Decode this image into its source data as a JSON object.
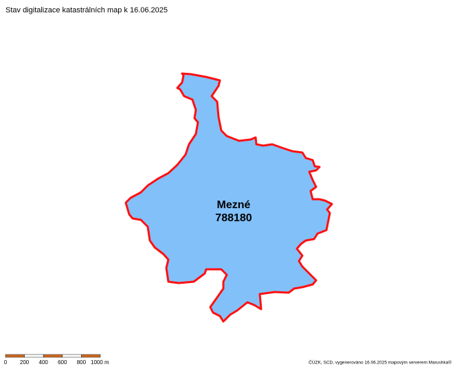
{
  "title": "Stav digitalizace katastrálních map k 16.06.2025",
  "map": {
    "area_name": "Mezné",
    "area_code": "788180"
  },
  "scale_bar": {
    "labels": [
      "0",
      "200",
      "400",
      "600",
      "800",
      "1000 m"
    ]
  },
  "credit": "ČÚZK, SCD, vygenerováno 16.06.2025 mapovým serverem Marushka®"
}
